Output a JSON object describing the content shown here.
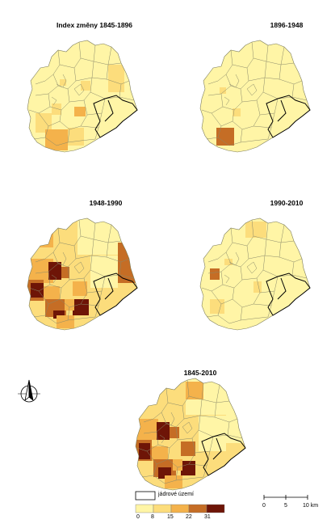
{
  "titles": {
    "p1": "Index změny 1845-1896",
    "p2": "1896-1948",
    "p3": "1948-1990",
    "p4": "1990-2010",
    "p5": "1845-2010"
  },
  "legend": {
    "core_label": "jádrové území",
    "class_labels": [
      "0",
      "8",
      "15",
      "22",
      "31"
    ],
    "class_colors": [
      "#FFF5A6",
      "#FCDD7C",
      "#F4B24B",
      "#C56D25",
      "#6E1507"
    ]
  },
  "scale": {
    "ticks": [
      "0",
      "5",
      "10 km"
    ]
  },
  "icons": {
    "north": "north-arrow-icon"
  }
}
